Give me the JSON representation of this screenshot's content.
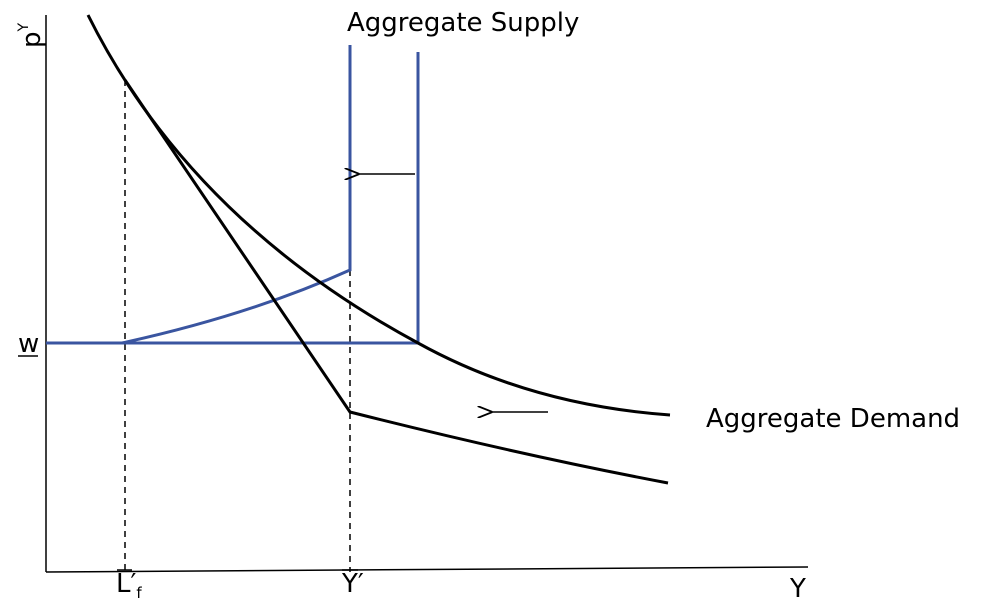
{
  "axes": {
    "y_label": {
      "base": "p",
      "sup": "Y"
    },
    "x_label": "Y"
  },
  "labels": {
    "wage": "w",
    "supply": "Aggregate Supply",
    "demand": "Aggregate Demand"
  },
  "x_markers": [
    {
      "base": "L′",
      "sub": "f"
    },
    {
      "base": "Y′"
    }
  ]
}
